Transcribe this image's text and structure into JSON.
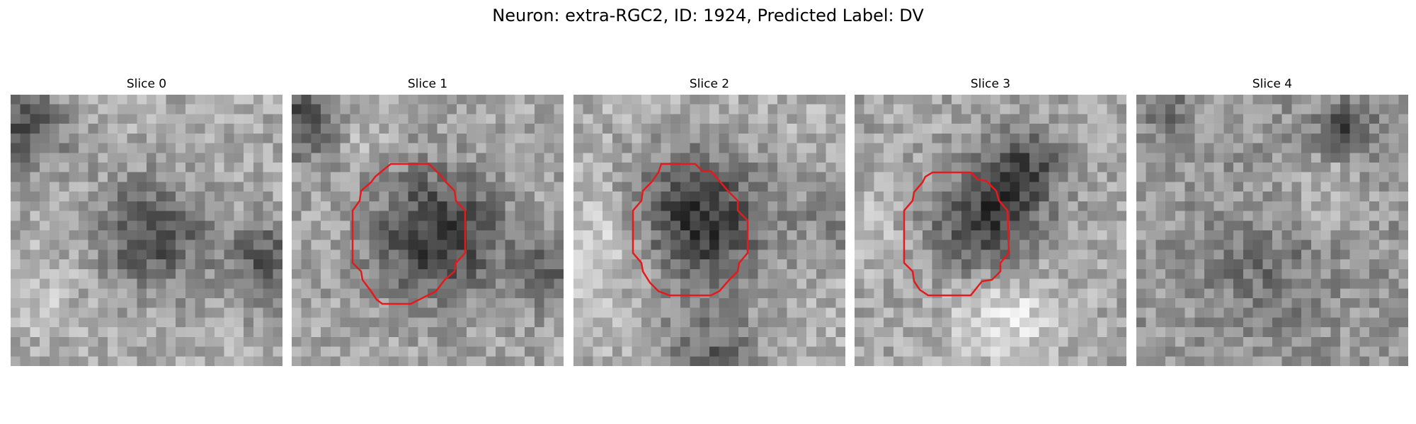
{
  "figure": {
    "title": "Neuron: extra-RGC2, ID: 1924, Predicted Label: DV",
    "roi_color": "#e41a1c"
  },
  "panels": [
    {
      "label": "Slice 0",
      "has_roi": false
    },
    {
      "label": "Slice 1",
      "has_roi": true
    },
    {
      "label": "Slice 2",
      "has_roi": true
    },
    {
      "label": "Slice 3",
      "has_roi": true
    },
    {
      "label": "Slice 4",
      "has_roi": false
    }
  ]
}
